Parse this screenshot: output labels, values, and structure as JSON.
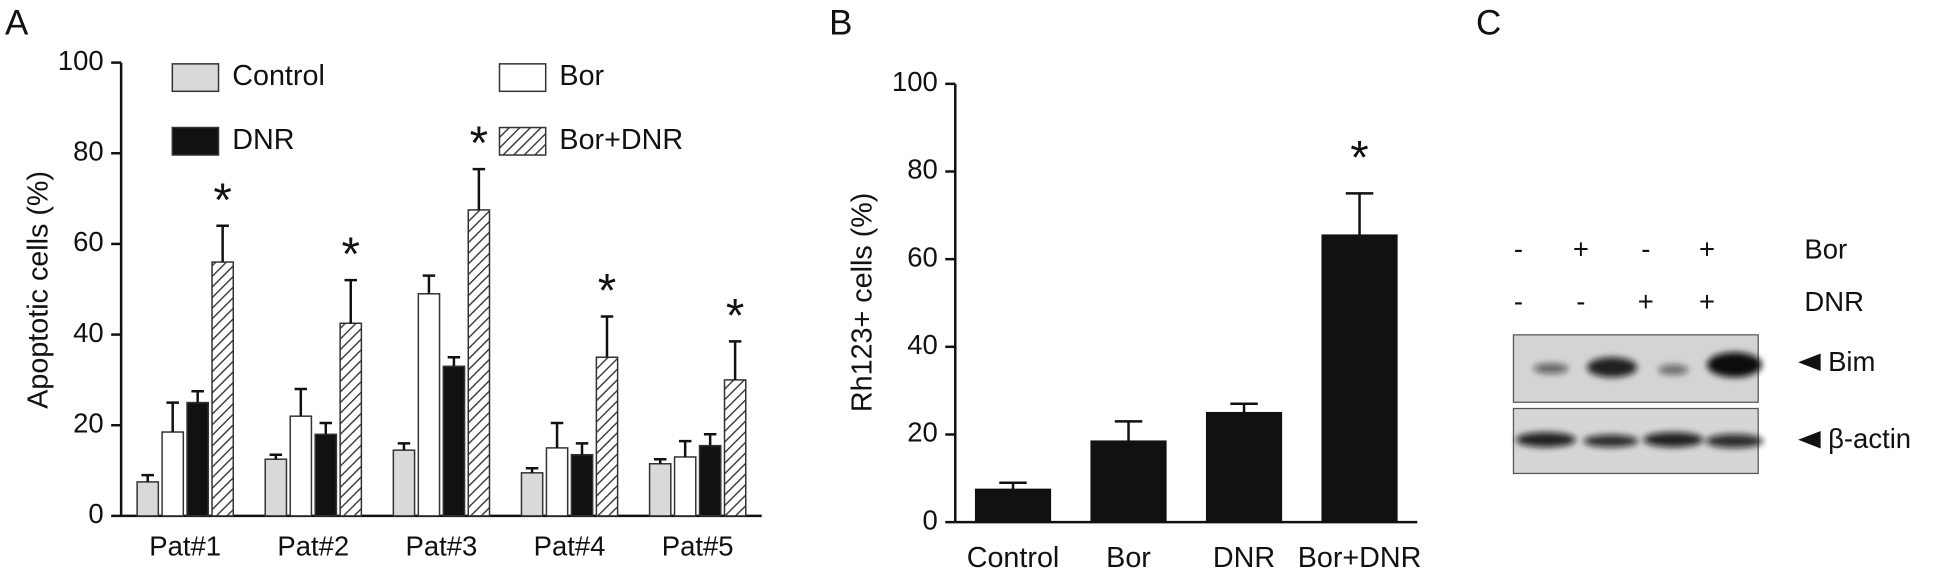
{
  "chart_data": [
    {
      "type": "bar",
      "panel_label": "A",
      "y_label": "Apoptotic cells (%)",
      "categories": [
        "Pat#1",
        "Pat#2",
        "Pat#3",
        "Pat#4",
        "Pat#5"
      ],
      "series": [
        {
          "name": "Control",
          "color": "#d9d9d9",
          "values": [
            7.5,
            12.5,
            14.5,
            9.5,
            11.5
          ],
          "errors": [
            1.5,
            1,
            1.5,
            1,
            1
          ]
        },
        {
          "name": "Bor",
          "color": "#ffffff",
          "values": [
            18.5,
            22,
            49,
            15,
            13
          ],
          "errors": [
            6.5,
            6,
            4,
            5.5,
            3.5
          ]
        },
        {
          "name": "DNR",
          "color": "#111111",
          "values": [
            25,
            18,
            33,
            13.5,
            15.5
          ],
          "errors": [
            2.5,
            2.5,
            2,
            2.5,
            2.5
          ]
        },
        {
          "name": "Bor+DNR",
          "color": "#ffffff",
          "hatch": true,
          "values": [
            56,
            42.5,
            67.5,
            35,
            30
          ],
          "errors": [
            8,
            9.5,
            9,
            9,
            8.5
          ]
        }
      ],
      "annotations": [
        {
          "text": "*",
          "category": "Pat#1",
          "series": "Bor+DNR"
        },
        {
          "text": "*",
          "category": "Pat#2",
          "series": "Bor+DNR"
        },
        {
          "text": "*",
          "category": "Pat#3",
          "series": "Bor+DNR"
        },
        {
          "text": "*",
          "category": "Pat#4",
          "series": "Bor+DNR"
        },
        {
          "text": "*",
          "category": "Pat#5",
          "series": "Bor+DNR"
        }
      ],
      "ylim": [
        0,
        100
      ],
      "yticks": [
        0,
        20,
        40,
        60,
        80,
        100
      ],
      "legend": "top"
    },
    {
      "type": "bar",
      "panel_label": "B",
      "y_label": "Rh123+ cells (%)",
      "categories": [
        "Control",
        "Bor",
        "DNR",
        "Bor+DNR"
      ],
      "values": [
        7.5,
        18.5,
        25,
        65.5
      ],
      "errors": [
        1.5,
        4.5,
        2,
        9.5
      ],
      "color": "#111111",
      "annotations": [
        {
          "text": "*",
          "category": "Bor+DNR"
        }
      ],
      "ylim": [
        0,
        100
      ],
      "yticks": [
        0,
        20,
        40,
        60,
        80,
        100
      ]
    }
  ],
  "blot": {
    "panel_label": "C",
    "rows": [
      {
        "name": "Bor",
        "signs": [
          "-",
          "+",
          "-",
          "+"
        ]
      },
      {
        "name": "DNR",
        "signs": [
          "-",
          "-",
          "+",
          "+"
        ]
      }
    ],
    "bands": [
      "Bim",
      "β-actin"
    ]
  }
}
